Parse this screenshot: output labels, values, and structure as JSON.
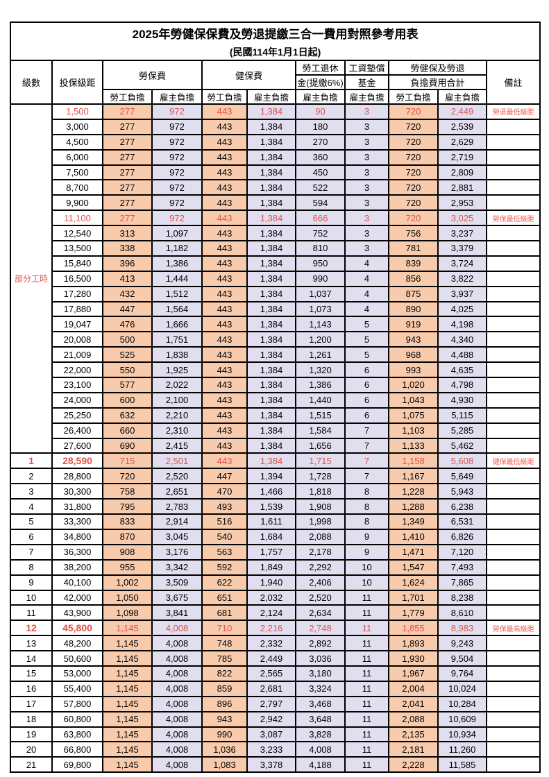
{
  "title": "2025年勞健保保費及勞退提繳三合一費用對照參考用表",
  "subtitle": "(民國114年1月1日起)",
  "colors": {
    "employee_bg": "#F8CBAD",
    "employer_bg": "#E1DEEF",
    "highlight_text": "#E05149",
    "border": "#000000"
  },
  "header": {
    "level": "級數",
    "bracket": "投保級距",
    "labor_ins": "勞保費",
    "health_ins": "健保費",
    "pension_line1": "勞工退休",
    "pension_line2": "金(提繳6%)",
    "wage_fund_line1": "工資墊償",
    "wage_fund_line2": "基金",
    "total_line1": "勞健保及勞退",
    "total_line2": "負擔費用合計",
    "employee": "勞工負擔",
    "employer": "雇主負擔",
    "remarks": "備註"
  },
  "part_time_label": "部分工時",
  "part_time_rowspan": 23,
  "rows": [
    {
      "br": "1,500",
      "a": "277",
      "b": "972",
      "c": "443",
      "d": "1,384",
      "e": "90",
      "f": "3",
      "g": "720",
      "h": "2,449",
      "note": "勞退最低級距",
      "red": true
    },
    {
      "br": "3,000",
      "a": "277",
      "b": "972",
      "c": "443",
      "d": "1,384",
      "e": "180",
      "f": "3",
      "g": "720",
      "h": "2,539",
      "note": ""
    },
    {
      "br": "4,500",
      "a": "277",
      "b": "972",
      "c": "443",
      "d": "1,384",
      "e": "270",
      "f": "3",
      "g": "720",
      "h": "2,629",
      "note": ""
    },
    {
      "br": "6,000",
      "a": "277",
      "b": "972",
      "c": "443",
      "d": "1,384",
      "e": "360",
      "f": "3",
      "g": "720",
      "h": "2,719",
      "note": ""
    },
    {
      "br": "7,500",
      "a": "277",
      "b": "972",
      "c": "443",
      "d": "1,384",
      "e": "450",
      "f": "3",
      "g": "720",
      "h": "2,809",
      "note": ""
    },
    {
      "br": "8,700",
      "a": "277",
      "b": "972",
      "c": "443",
      "d": "1,384",
      "e": "522",
      "f": "3",
      "g": "720",
      "h": "2,881",
      "note": ""
    },
    {
      "br": "9,900",
      "a": "277",
      "b": "972",
      "c": "443",
      "d": "1,384",
      "e": "594",
      "f": "3",
      "g": "720",
      "h": "2,953",
      "note": ""
    },
    {
      "br": "11,100",
      "a": "277",
      "b": "972",
      "c": "443",
      "d": "1,384",
      "e": "666",
      "f": "3",
      "g": "720",
      "h": "3,025",
      "note": "勞保最低級距",
      "red": true
    },
    {
      "br": "12,540",
      "a": "313",
      "b": "1,097",
      "c": "443",
      "d": "1,384",
      "e": "752",
      "f": "3",
      "g": "756",
      "h": "3,237",
      "note": ""
    },
    {
      "br": "13,500",
      "a": "338",
      "b": "1,182",
      "c": "443",
      "d": "1,384",
      "e": "810",
      "f": "3",
      "g": "781",
      "h": "3,379",
      "note": ""
    },
    {
      "br": "15,840",
      "a": "396",
      "b": "1,386",
      "c": "443",
      "d": "1,384",
      "e": "950",
      "f": "4",
      "g": "839",
      "h": "3,724",
      "note": ""
    },
    {
      "br": "16,500",
      "a": "413",
      "b": "1,444",
      "c": "443",
      "d": "1,384",
      "e": "990",
      "f": "4",
      "g": "856",
      "h": "3,822",
      "note": ""
    },
    {
      "br": "17,280",
      "a": "432",
      "b": "1,512",
      "c": "443",
      "d": "1,384",
      "e": "1,037",
      "f": "4",
      "g": "875",
      "h": "3,937",
      "note": ""
    },
    {
      "br": "17,880",
      "a": "447",
      "b": "1,564",
      "c": "443",
      "d": "1,384",
      "e": "1,073",
      "f": "4",
      "g": "890",
      "h": "4,025",
      "note": ""
    },
    {
      "br": "19,047",
      "a": "476",
      "b": "1,666",
      "c": "443",
      "d": "1,384",
      "e": "1,143",
      "f": "5",
      "g": "919",
      "h": "4,198",
      "note": ""
    },
    {
      "br": "20,008",
      "a": "500",
      "b": "1,751",
      "c": "443",
      "d": "1,384",
      "e": "1,200",
      "f": "5",
      "g": "943",
      "h": "4,340",
      "note": ""
    },
    {
      "br": "21,009",
      "a": "525",
      "b": "1,838",
      "c": "443",
      "d": "1,384",
      "e": "1,261",
      "f": "5",
      "g": "968",
      "h": "4,488",
      "note": ""
    },
    {
      "br": "22,000",
      "a": "550",
      "b": "1,925",
      "c": "443",
      "d": "1,384",
      "e": "1,320",
      "f": "6",
      "g": "993",
      "h": "4,635",
      "note": ""
    },
    {
      "br": "23,100",
      "a": "577",
      "b": "2,022",
      "c": "443",
      "d": "1,384",
      "e": "1,386",
      "f": "6",
      "g": "1,020",
      "h": "4,798",
      "note": ""
    },
    {
      "br": "24,000",
      "a": "600",
      "b": "2,100",
      "c": "443",
      "d": "1,384",
      "e": "1,440",
      "f": "6",
      "g": "1,043",
      "h": "4,930",
      "note": ""
    },
    {
      "br": "25,250",
      "a": "632",
      "b": "2,210",
      "c": "443",
      "d": "1,384",
      "e": "1,515",
      "f": "6",
      "g": "1,075",
      "h": "5,115",
      "note": ""
    },
    {
      "br": "26,400",
      "a": "660",
      "b": "2,310",
      "c": "443",
      "d": "1,384",
      "e": "1,584",
      "f": "7",
      "g": "1,103",
      "h": "5,285",
      "note": ""
    },
    {
      "br": "27,600",
      "a": "690",
      "b": "2,415",
      "c": "443",
      "d": "1,384",
      "e": "1,656",
      "f": "7",
      "g": "1,133",
      "h": "5,462",
      "note": ""
    },
    {
      "lv": "1",
      "br": "28,590",
      "a": "715",
      "b": "2,501",
      "c": "443",
      "d": "1,384",
      "e": "1,715",
      "f": "7",
      "g": "1,158",
      "h": "5,608",
      "note": "健保最低級距",
      "red": true,
      "bold": true
    },
    {
      "lv": "2",
      "br": "28,800",
      "a": "720",
      "b": "2,520",
      "c": "447",
      "d": "1,394",
      "e": "1,728",
      "f": "7",
      "g": "1,167",
      "h": "5,649",
      "note": ""
    },
    {
      "lv": "3",
      "br": "30,300",
      "a": "758",
      "b": "2,651",
      "c": "470",
      "d": "1,466",
      "e": "1,818",
      "f": "8",
      "g": "1,228",
      "h": "5,943",
      "note": ""
    },
    {
      "lv": "4",
      "br": "31,800",
      "a": "795",
      "b": "2,783",
      "c": "493",
      "d": "1,539",
      "e": "1,908",
      "f": "8",
      "g": "1,288",
      "h": "6,238",
      "note": ""
    },
    {
      "lv": "5",
      "br": "33,300",
      "a": "833",
      "b": "2,914",
      "c": "516",
      "d": "1,611",
      "e": "1,998",
      "f": "8",
      "g": "1,349",
      "h": "6,531",
      "note": ""
    },
    {
      "lv": "6",
      "br": "34,800",
      "a": "870",
      "b": "3,045",
      "c": "540",
      "d": "1,684",
      "e": "2,088",
      "f": "9",
      "g": "1,410",
      "h": "6,826",
      "note": ""
    },
    {
      "lv": "7",
      "br": "36,300",
      "a": "908",
      "b": "3,176",
      "c": "563",
      "d": "1,757",
      "e": "2,178",
      "f": "9",
      "g": "1,471",
      "h": "7,120",
      "note": ""
    },
    {
      "lv": "8",
      "br": "38,200",
      "a": "955",
      "b": "3,342",
      "c": "592",
      "d": "1,849",
      "e": "2,292",
      "f": "10",
      "g": "1,547",
      "h": "7,493",
      "note": ""
    },
    {
      "lv": "9",
      "br": "40,100",
      "a": "1,002",
      "b": "3,509",
      "c": "622",
      "d": "1,940",
      "e": "2,406",
      "f": "10",
      "g": "1,624",
      "h": "7,865",
      "note": ""
    },
    {
      "lv": "10",
      "br": "42,000",
      "a": "1,050",
      "b": "3,675",
      "c": "651",
      "d": "2,032",
      "e": "2,520",
      "f": "11",
      "g": "1,701",
      "h": "8,238",
      "note": ""
    },
    {
      "lv": "11",
      "br": "43,900",
      "a": "1,098",
      "b": "3,841",
      "c": "681",
      "d": "2,124",
      "e": "2,634",
      "f": "11",
      "g": "1,779",
      "h": "8,610",
      "note": ""
    },
    {
      "lv": "12",
      "br": "45,800",
      "a": "1,145",
      "b": "4,008",
      "c": "710",
      "d": "2,216",
      "e": "2,748",
      "f": "11",
      "g": "1,855",
      "h": "8,983",
      "note": "勞保最高級距",
      "red": true,
      "bold": true
    },
    {
      "lv": "13",
      "br": "48,200",
      "a": "1,145",
      "b": "4,008",
      "c": "748",
      "d": "2,332",
      "e": "2,892",
      "f": "11",
      "g": "1,893",
      "h": "9,243",
      "note": ""
    },
    {
      "lv": "14",
      "br": "50,600",
      "a": "1,145",
      "b": "4,008",
      "c": "785",
      "d": "2,449",
      "e": "3,036",
      "f": "11",
      "g": "1,930",
      "h": "9,504",
      "note": ""
    },
    {
      "lv": "15",
      "br": "53,000",
      "a": "1,145",
      "b": "4,008",
      "c": "822",
      "d": "2,565",
      "e": "3,180",
      "f": "11",
      "g": "1,967",
      "h": "9,764",
      "note": ""
    },
    {
      "lv": "16",
      "br": "55,400",
      "a": "1,145",
      "b": "4,008",
      "c": "859",
      "d": "2,681",
      "e": "3,324",
      "f": "11",
      "g": "2,004",
      "h": "10,024",
      "note": ""
    },
    {
      "lv": "17",
      "br": "57,800",
      "a": "1,145",
      "b": "4,008",
      "c": "896",
      "d": "2,797",
      "e": "3,468",
      "f": "11",
      "g": "2,041",
      "h": "10,284",
      "note": ""
    },
    {
      "lv": "18",
      "br": "60,800",
      "a": "1,145",
      "b": "4,008",
      "c": "943",
      "d": "2,942",
      "e": "3,648",
      "f": "11",
      "g": "2,088",
      "h": "10,609",
      "note": ""
    },
    {
      "lv": "19",
      "br": "63,800",
      "a": "1,145",
      "b": "4,008",
      "c": "990",
      "d": "3,087",
      "e": "3,828",
      "f": "11",
      "g": "2,135",
      "h": "10,934",
      "note": ""
    },
    {
      "lv": "20",
      "br": "66,800",
      "a": "1,145",
      "b": "4,008",
      "c": "1,036",
      "d": "3,233",
      "e": "4,008",
      "f": "11",
      "g": "2,181",
      "h": "11,260",
      "note": ""
    },
    {
      "lv": "21",
      "br": "69,800",
      "a": "1,145",
      "b": "4,008",
      "c": "1,083",
      "d": "3,378",
      "e": "4,188",
      "f": "11",
      "g": "2,228",
      "h": "11,585",
      "note": ""
    }
  ]
}
